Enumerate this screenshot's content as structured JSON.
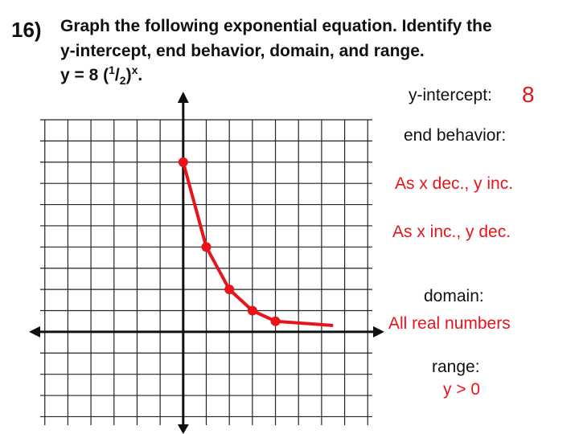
{
  "problem": {
    "number": "16)",
    "lines": [
      "Graph the following exponential equation.  Identify the",
      "y-intercept, end behavior, domain, and range."
    ],
    "equation": [
      "y = 8 (",
      "1",
      "/",
      "2",
      ")",
      "x",
      "."
    ]
  },
  "chart_data": {
    "type": "line",
    "xlim": [
      -6.2,
      8.2
    ],
    "ylim": [
      -4.4,
      10
    ],
    "xticks": [
      -6,
      -5,
      -4,
      -3,
      -2,
      -1,
      0,
      1,
      2,
      3,
      4,
      5,
      6,
      7,
      8
    ],
    "yticks": [
      -4,
      -3,
      -2,
      -1,
      0,
      1,
      2,
      3,
      4,
      5,
      6,
      7,
      8,
      9,
      10
    ],
    "tick_labels": false,
    "grid": true,
    "series": [
      {
        "x": [
          0,
          1,
          2,
          3,
          4
        ],
        "values": [
          8,
          4,
          2,
          1,
          0.5
        ],
        "color": "#e8141b",
        "markers": true
      },
      {
        "x": [
          4,
          6.5
        ],
        "values": [
          0.5,
          0.3
        ],
        "color": "#e8141b",
        "markers": false
      }
    ]
  },
  "answers": {
    "y_intercept_label": "y-intercept:",
    "y_intercept": "8",
    "end_behavior_label": "end behavior:",
    "end_behavior": [
      "As x dec., y inc.",
      "As x inc., y dec."
    ],
    "domain_label": "domain:",
    "domain": "All real numbers",
    "range_label": "range:",
    "range": "y > 0"
  }
}
